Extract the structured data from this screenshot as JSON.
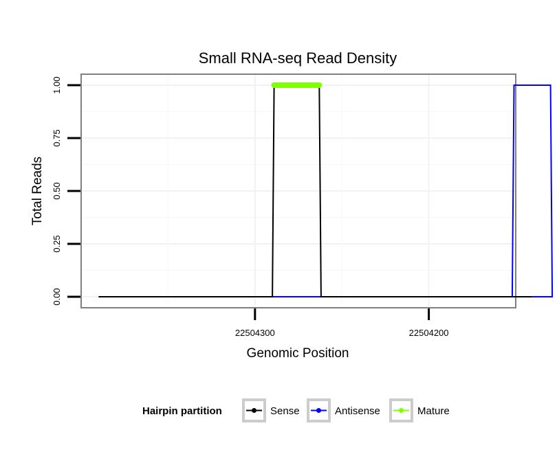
{
  "chart_data": {
    "type": "line",
    "title": "Small RNA-seq Read Density",
    "xlabel": "Genomic Position",
    "ylabel": "Total Reads",
    "xlim": [
      22504400,
      22504150
    ],
    "ylim": [
      0,
      1.0
    ],
    "x_ticks": [
      22504300,
      22504200
    ],
    "x_tick_labels": [
      "22504300",
      "22504200"
    ],
    "y_ticks": [
      0,
      0.25,
      0.5,
      0.75,
      1.0
    ],
    "y_tick_labels": [
      "0.00",
      "0.25",
      "0.50",
      "0.75",
      "1.00"
    ],
    "grid": true,
    "legend": {
      "title": "Hairpin partition",
      "position": "bottom",
      "entries": [
        {
          "label": "Sense",
          "color": "#000000"
        },
        {
          "label": "Antisense",
          "color": "#0000ff"
        },
        {
          "label": "Mature",
          "color": "#7fff00"
        }
      ]
    },
    "series": [
      {
        "name": "Sense",
        "color": "#000000",
        "x": [
          22504390,
          22504290,
          22504289,
          22504263,
          22504262,
          22504141
        ],
        "y": [
          0,
          0,
          1,
          1,
          0,
          0
        ]
      },
      {
        "name": "Antisense",
        "color": "#0000ff",
        "x": [
          22504290,
          22504262,
          22504252,
          22504152,
          22504151,
          22504130,
          22504129,
          22504150
        ],
        "y": [
          0,
          0,
          0,
          0,
          1,
          1,
          0,
          0
        ]
      },
      {
        "name": "Mature",
        "color": "#7fff00",
        "x": [
          22504289,
          22504263
        ],
        "y": [
          1,
          1
        ]
      }
    ]
  }
}
